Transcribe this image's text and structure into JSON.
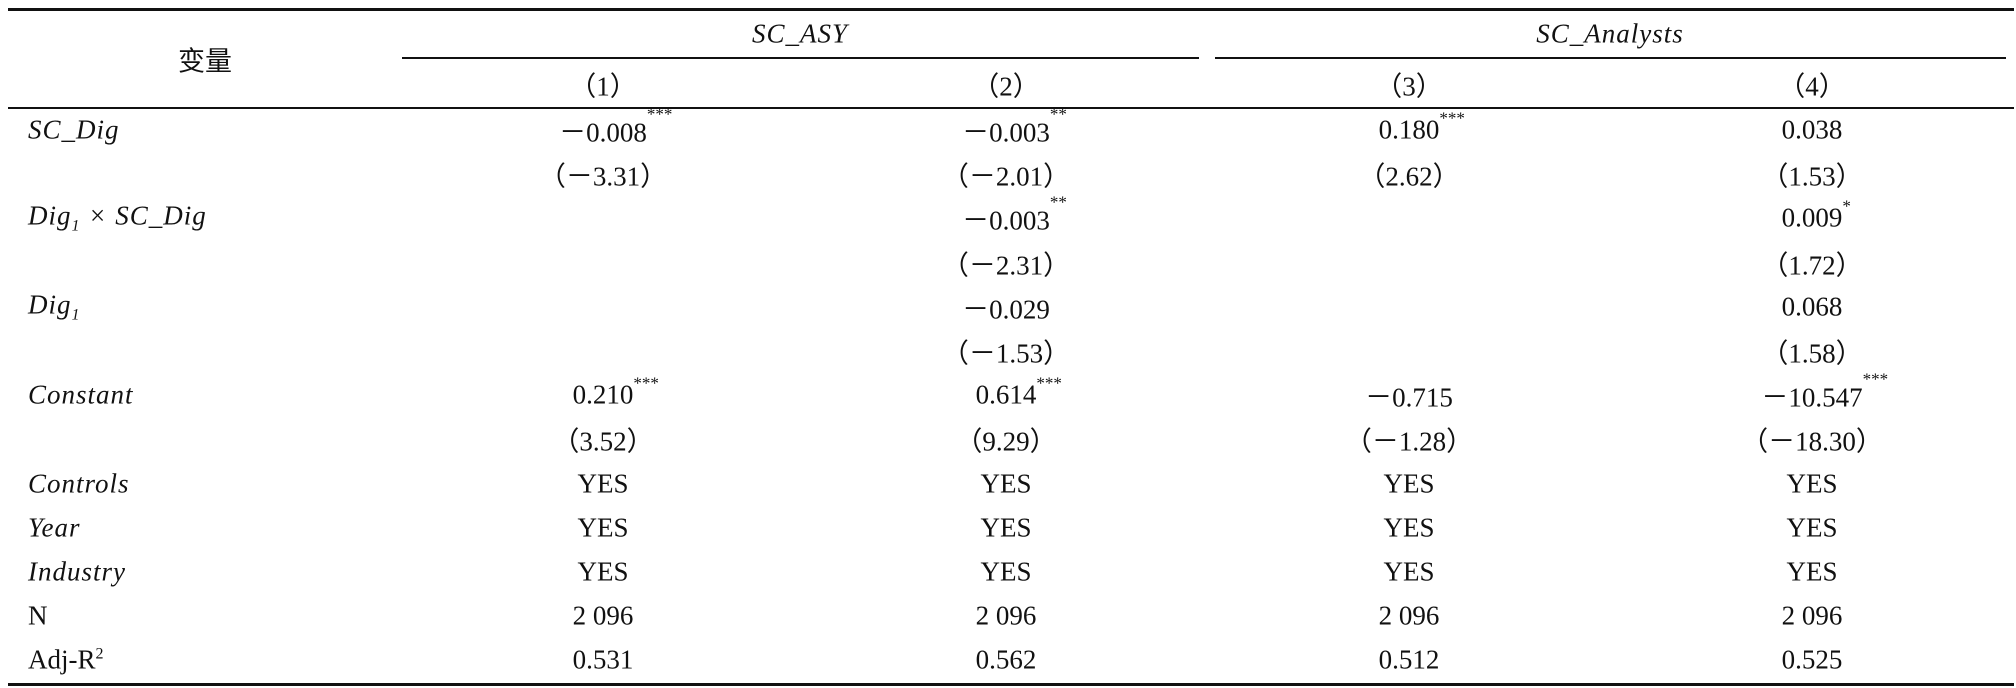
{
  "header": {
    "variable": "变量",
    "groups": [
      "SC_ASY",
      "SC_Analysts"
    ],
    "columns": [
      "（1）",
      "（2）",
      "（3）",
      "（4）"
    ]
  },
  "rows": [
    {
      "label": {
        "text": "SC_Dig",
        "italic": true
      },
      "cells": [
        {
          "v": "－0.008",
          "s": "***"
        },
        {
          "v": "－0.003",
          "s": "**"
        },
        {
          "v": "0.180",
          "s": "***"
        },
        {
          "v": "0.038"
        }
      ]
    },
    {
      "cells": [
        {
          "v": "（－3.31）"
        },
        {
          "v": "（－2.01）"
        },
        {
          "v": "（2.62）"
        },
        {
          "v": "（1.53）"
        }
      ]
    },
    {
      "label": {
        "text": "Dig",
        "sub": "1",
        "after": " × SC_Dig",
        "italic": true
      },
      "cells": [
        null,
        {
          "v": "－0.003",
          "s": "**"
        },
        null,
        {
          "v": "0.009",
          "s": "*"
        }
      ]
    },
    {
      "cells": [
        null,
        {
          "v": "（－2.31）"
        },
        null,
        {
          "v": "（1.72）"
        }
      ]
    },
    {
      "label": {
        "text": "Dig",
        "sub": "1",
        "italic": true
      },
      "cells": [
        null,
        {
          "v": "－0.029"
        },
        null,
        {
          "v": "0.068"
        }
      ]
    },
    {
      "cells": [
        null,
        {
          "v": "（－1.53）"
        },
        null,
        {
          "v": "（1.58）"
        }
      ]
    },
    {
      "label": {
        "text": "Constant",
        "italic": true
      },
      "cells": [
        {
          "v": "0.210",
          "s": "***"
        },
        {
          "v": "0.614",
          "s": "***"
        },
        {
          "v": "－0.715"
        },
        {
          "v": "－10.547",
          "s": "***"
        }
      ]
    },
    {
      "cells": [
        {
          "v": "（3.52）"
        },
        {
          "v": "（9.29）"
        },
        {
          "v": "（－1.28）"
        },
        {
          "v": "（－18.30）"
        }
      ]
    },
    {
      "label": {
        "text": "Controls",
        "italic": true
      },
      "cells": [
        {
          "v": "YES"
        },
        {
          "v": "YES"
        },
        {
          "v": "YES"
        },
        {
          "v": "YES"
        }
      ]
    },
    {
      "label": {
        "text": "Year",
        "italic": true
      },
      "cells": [
        {
          "v": "YES"
        },
        {
          "v": "YES"
        },
        {
          "v": "YES"
        },
        {
          "v": "YES"
        }
      ]
    },
    {
      "label": {
        "text": "Industry",
        "italic": true
      },
      "cells": [
        {
          "v": "YES"
        },
        {
          "v": "YES"
        },
        {
          "v": "YES"
        },
        {
          "v": "YES"
        }
      ]
    },
    {
      "label": {
        "text": "N",
        "italic": false
      },
      "cells": [
        {
          "v": "2 096"
        },
        {
          "v": "2 096"
        },
        {
          "v": "2 096"
        },
        {
          "v": "2 096"
        }
      ]
    },
    {
      "label": {
        "text": "Adj-R",
        "sup": "2",
        "italic": false
      },
      "cells": [
        {
          "v": "0.531"
        },
        {
          "v": "0.562"
        },
        {
          "v": "0.512"
        },
        {
          "v": "0.525"
        }
      ]
    }
  ]
}
